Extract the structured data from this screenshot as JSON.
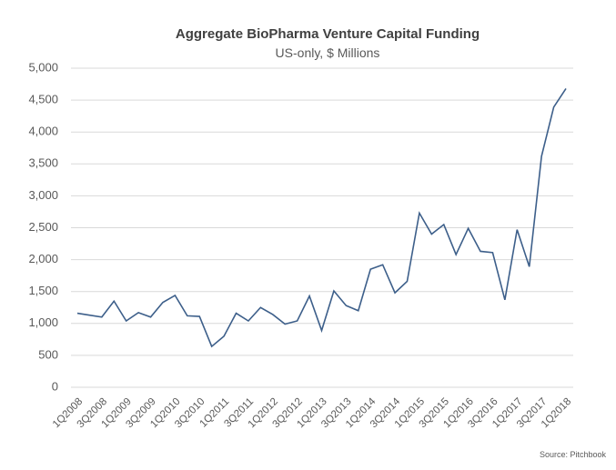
{
  "chart_data": {
    "type": "line",
    "title": "Aggregate BioPharma Venture Capital Funding",
    "subtitle": "US-only, $ Millions",
    "annotation": "Source: Pitchbook",
    "categories": [
      "1Q2008",
      null,
      "3Q2008",
      null,
      "1Q2009",
      null,
      "3Q2009",
      null,
      "1Q2010",
      null,
      "3Q2010",
      null,
      "1Q2011",
      null,
      "3Q2011",
      null,
      "1Q2012",
      null,
      "3Q2012",
      null,
      "1Q2013",
      null,
      "3Q2013",
      null,
      "1Q2014",
      null,
      "3Q2014",
      null,
      "1Q2015",
      null,
      "3Q2015",
      null,
      "1Q2016",
      null,
      "3Q2016",
      null,
      "1Q2017",
      null,
      "3Q2017",
      null,
      "1Q2018"
    ],
    "series": [
      {
        "color": "#3d5f8a",
        "values": [
          1160,
          1130,
          1100,
          1350,
          1040,
          1170,
          1100,
          1330,
          1440,
          1120,
          1110,
          640,
          800,
          1160,
          1040,
          1250,
          1140,
          990,
          1040,
          1430,
          890,
          1510,
          1280,
          1200,
          1850,
          1920,
          1480,
          1660,
          2730,
          2400,
          2550,
          2080,
          2490,
          2130,
          2110,
          1370,
          2470,
          1890,
          3620,
          4390,
          4680
        ]
      }
    ],
    "ylim": [
      0,
      5000
    ],
    "yticks": [
      0,
      500,
      {
        "value": 1000,
        "label": "1,000"
      },
      {
        "value": 1500,
        "label": "1,500"
      },
      {
        "value": 2000,
        "label": "2,000"
      },
      {
        "value": 2500,
        "label": "2,500"
      },
      {
        "value": 3000,
        "label": "3,000"
      },
      {
        "value": 3500,
        "label": "3,500"
      },
      {
        "value": 4000,
        "label": "4,000"
      },
      {
        "value": 4500,
        "label": "4,500"
      },
      {
        "value": 5000,
        "label": "5,000"
      }
    ],
    "grid": true
  }
}
